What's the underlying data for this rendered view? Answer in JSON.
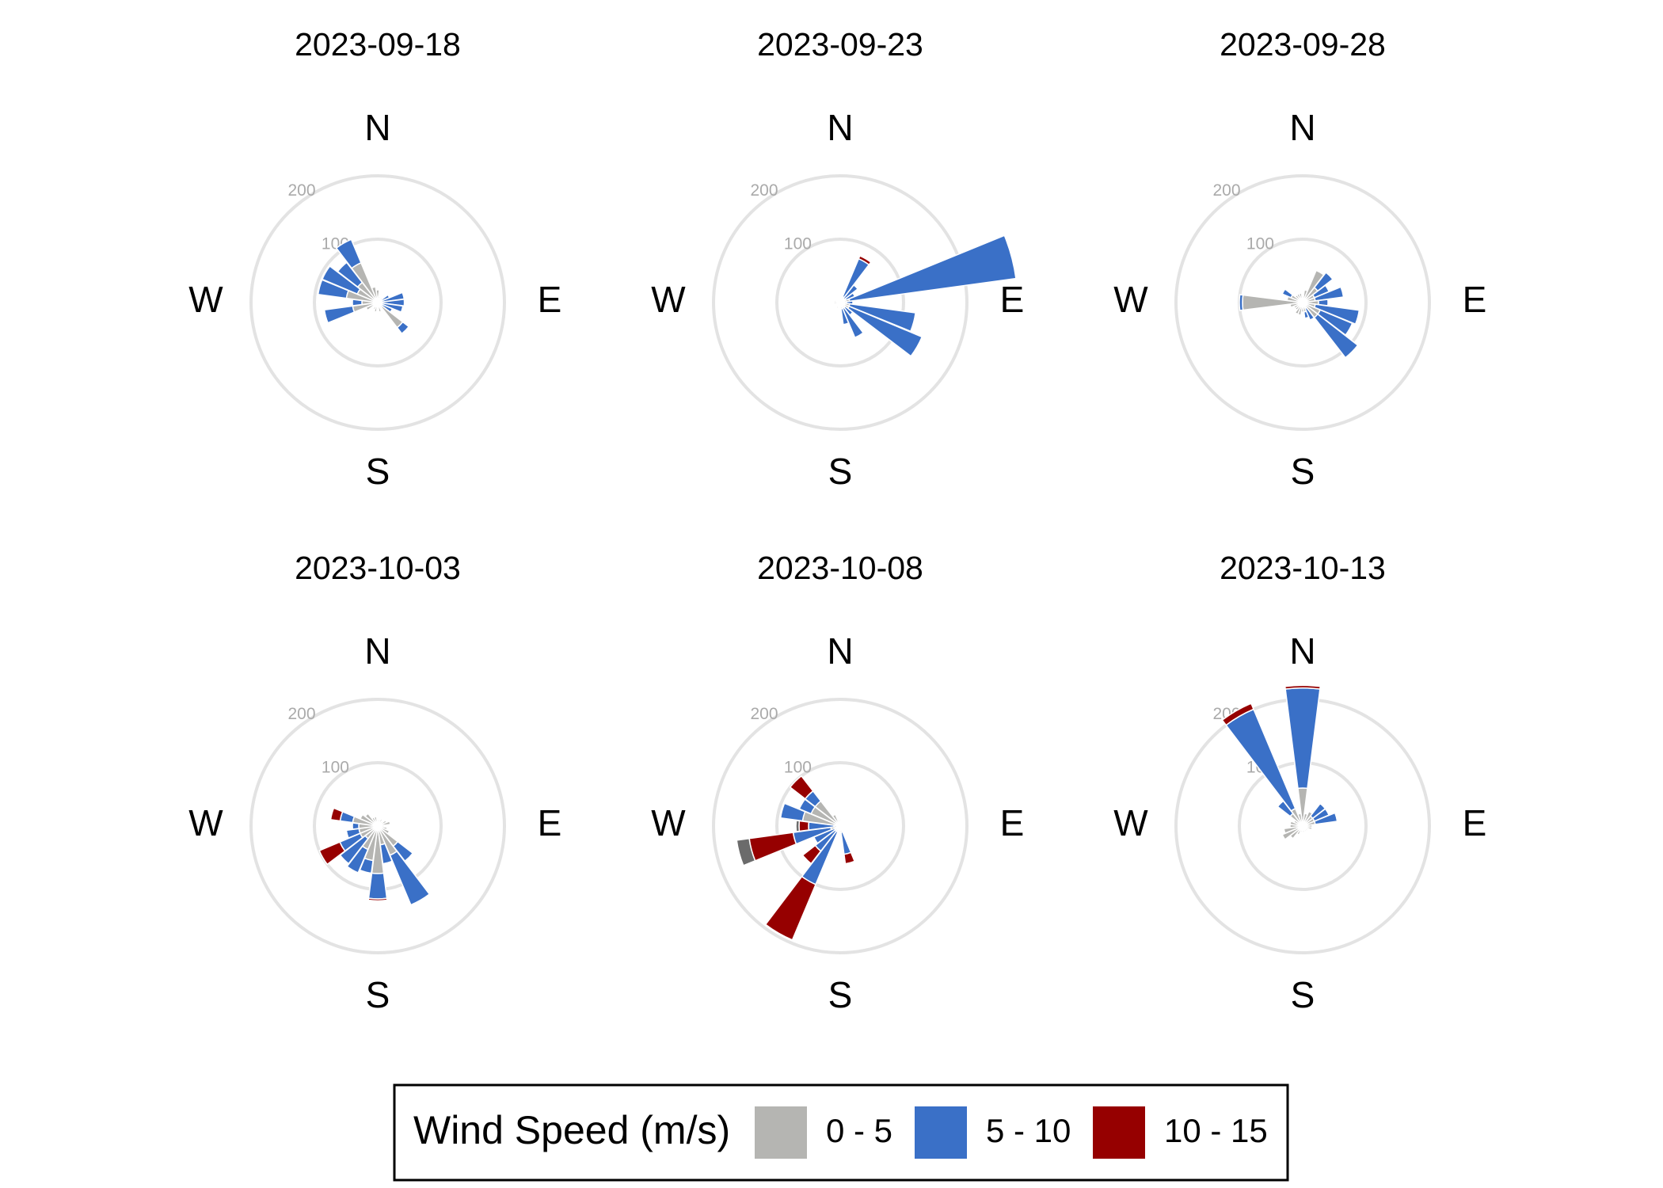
{
  "chart_data": {
    "type": "wind-rose",
    "facets": [
      "2023-09-18",
      "2023-09-23",
      "2023-09-28",
      "2023-10-03",
      "2023-10-08",
      "2023-10-13"
    ],
    "ring_labels": [
      "100",
      "200"
    ],
    "ring_values": [
      100,
      200
    ],
    "radius_max": 200,
    "compass_labels": {
      "N": "N",
      "E": "E",
      "S": "S",
      "W": "W"
    },
    "legend": {
      "title": "Wind Speed (m/s)",
      "bins": [
        {
          "label": "0 - 5",
          "color": "#b5b5b2"
        },
        {
          "label": "5 - 10",
          "color": "#3a70c7"
        },
        {
          "label": "10 - 15",
          "color": "#960000"
        }
      ]
    },
    "colors": {
      "dark_gray": "#6b6b6b",
      "ring": "#e3e3e3"
    },
    "panels": [
      {
        "date": "2023-09-18",
        "sectors": [
          {
            "dir": 0,
            "cum": [
              20
            ]
          },
          {
            "dir": 15,
            "cum": [
              10
            ]
          },
          {
            "dir": 30,
            "cum": [
              8
            ]
          },
          {
            "dir": 45,
            "cum": [
              10
            ]
          },
          {
            "dir": 60,
            "cum": [
              5,
              20
            ]
          },
          {
            "dir": 75,
            "cum": [
              5,
              42
            ]
          },
          {
            "dir": 90,
            "cum": [
              5,
              42
            ]
          },
          {
            "dir": 105,
            "cum": [
              5,
              40
            ]
          },
          {
            "dir": 120,
            "cum": [
              5,
              25
            ]
          },
          {
            "dir": 135,
            "cum": [
              50,
              62
            ]
          },
          {
            "dir": 150,
            "cum": [
              10
            ]
          },
          {
            "dir": 165,
            "cum": [
              15
            ]
          },
          {
            "dir": 180,
            "cum": [
              8
            ]
          },
          {
            "dir": 195,
            "cum": [
              15
            ]
          },
          {
            "dir": 210,
            "cum": [
              12
            ]
          },
          {
            "dir": 225,
            "cum": [
              8
            ]
          },
          {
            "dir": 240,
            "cum": [
              20
            ]
          },
          {
            "dir": 255,
            "cum": [
              40,
              85
            ]
          },
          {
            "dir": 270,
            "cum": [
              25,
              40
            ]
          },
          {
            "dir": 285,
            "cum": [
              50,
              95
            ]
          },
          {
            "dir": 300,
            "cum": [
              35,
              95
            ]
          },
          {
            "dir": 315,
            "cum": [
              40,
              80
            ]
          },
          {
            "dir": 330,
            "cum": [
              68,
              108
            ]
          },
          {
            "dir": 345,
            "cum": [
              25
            ]
          }
        ]
      },
      {
        "date": "2023-09-23",
        "sectors": [
          {
            "dir": 0,
            "cum": [
              5
            ]
          },
          {
            "dir": 15,
            "cum": [
              5
            ]
          },
          {
            "dir": 30,
            "cum": [
              10,
              75,
              80
            ]
          },
          {
            "dir": 45,
            "cum": [
              8,
              35
            ]
          },
          {
            "dir": 60,
            "cum": [
              10,
              25
            ]
          },
          {
            "dir": 75,
            "cum": [
              15,
              280
            ]
          },
          {
            "dir": 90,
            "cum": [
              10,
              20
            ]
          },
          {
            "dir": 105,
            "cum": [
              15,
              120
            ]
          },
          {
            "dir": 120,
            "cum": [
              15,
              140
            ]
          },
          {
            "dir": 135,
            "cum": [
              10,
              25
            ]
          },
          {
            "dir": 150,
            "cum": [
              10,
              60
            ]
          },
          {
            "dir": 165,
            "cum": [
              10,
              35
            ]
          },
          {
            "dir": 180,
            "cum": [
              8
            ]
          },
          {
            "dir": 195,
            "cum": [
              8
            ]
          },
          {
            "dir": 210,
            "cum": [
              10
            ]
          },
          {
            "dir": 225,
            "cum": [
              5
            ]
          },
          {
            "dir": 240,
            "cum": [
              8
            ]
          },
          {
            "dir": 255,
            "cum": [
              8
            ]
          },
          {
            "dir": 270,
            "cum": [
              10
            ]
          },
          {
            "dir": 285,
            "cum": [
              10
            ]
          },
          {
            "dir": 300,
            "cum": [
              5
            ]
          },
          {
            "dir": 315,
            "cum": [
              5
            ]
          },
          {
            "dir": 330,
            "cum": [
              5
            ]
          },
          {
            "dir": 345,
            "cum": [
              5
            ]
          }
        ]
      },
      {
        "date": "2023-09-28",
        "sectors": [
          {
            "dir": 0,
            "cum": [
              10
            ]
          },
          {
            "dir": 15,
            "cum": [
              20
            ]
          },
          {
            "dir": 30,
            "cum": [
              55
            ]
          },
          {
            "dir": 45,
            "cum": [
              30,
              60
            ]
          },
          {
            "dir": 60,
            "cum": [
              20,
              45
            ]
          },
          {
            "dir": 75,
            "cum": [
              20,
              65
            ]
          },
          {
            "dir": 90,
            "cum": [
              25,
              40
            ]
          },
          {
            "dir": 105,
            "cum": [
              20,
              90
            ]
          },
          {
            "dir": 120,
            "cum": [
              30,
              85
            ]
          },
          {
            "dir": 135,
            "cum": [
              30,
              110
            ]
          },
          {
            "dir": 150,
            "cum": [
              10,
              30
            ]
          },
          {
            "dir": 165,
            "cum": [
              15,
              25
            ]
          },
          {
            "dir": 180,
            "cum": [
              15
            ]
          },
          {
            "dir": 195,
            "cum": [
              20
            ]
          },
          {
            "dir": 210,
            "cum": [
              20
            ]
          },
          {
            "dir": 225,
            "cum": [
              15
            ]
          },
          {
            "dir": 240,
            "cum": [
              15
            ]
          },
          {
            "dir": 255,
            "cum": [
              20
            ]
          },
          {
            "dir": 270,
            "cum": [
              95,
              100
            ]
          },
          {
            "dir": 285,
            "cum": [
              25
            ]
          },
          {
            "dir": 300,
            "cum": [
              20,
              35
            ]
          },
          {
            "dir": 315,
            "cum": [
              15
            ]
          },
          {
            "dir": 330,
            "cum": [
              15
            ]
          },
          {
            "dir": 345,
            "cum": [
              15
            ]
          }
        ]
      },
      {
        "date": "2023-10-03",
        "sectors": [
          {
            "dir": 0,
            "cum": [
              10
            ]
          },
          {
            "dir": 15,
            "cum": [
              10
            ]
          },
          {
            "dir": 30,
            "cum": [
              12
            ]
          },
          {
            "dir": 45,
            "cum": [
              10
            ]
          },
          {
            "dir": 60,
            "cum": [
              15
            ]
          },
          {
            "dir": 75,
            "cum": [
              20
            ]
          },
          {
            "dir": 90,
            "cum": [
              10
            ]
          },
          {
            "dir": 105,
            "cum": [
              15
            ]
          },
          {
            "dir": 120,
            "cum": [
              20
            ]
          },
          {
            "dir": 135,
            "cum": [
              40,
              70
            ]
          },
          {
            "dir": 150,
            "cum": [
              50,
              135
            ]
          },
          {
            "dir": 165,
            "cum": [
              30,
              60
            ]
          },
          {
            "dir": 180,
            "cum": [
              75,
              115,
              118
            ]
          },
          {
            "dir": 195,
            "cum": [
              55,
              75
            ]
          },
          {
            "dir": 210,
            "cum": [
              40,
              80
            ]
          },
          {
            "dir": 225,
            "cum": [
              25,
              75
            ]
          },
          {
            "dir": 240,
            "cum": [
              30,
              65,
              100
            ]
          },
          {
            "dir": 255,
            "cum": [
              30,
              50
            ]
          },
          {
            "dir": 270,
            "cum": [
              30,
              40
            ]
          },
          {
            "dir": 285,
            "cum": [
              40,
              60,
              75
            ]
          },
          {
            "dir": 300,
            "cum": [
              30
            ]
          },
          {
            "dir": 315,
            "cum": [
              25
            ]
          },
          {
            "dir": 330,
            "cum": [
              15
            ]
          },
          {
            "dir": 345,
            "cum": [
              15
            ]
          }
        ]
      },
      {
        "date": "2023-10-08",
        "sectors": [
          {
            "dir": 0,
            "cum": [
              10
            ]
          },
          {
            "dir": 15,
            "cum": [
              8
            ]
          },
          {
            "dir": 30,
            "cum": [
              8
            ]
          },
          {
            "dir": 45,
            "cum": [
              5
            ]
          },
          {
            "dir": 60,
            "cum": [
              5
            ]
          },
          {
            "dir": 75,
            "cum": [
              5
            ]
          },
          {
            "dir": 90,
            "cum": [
              5
            ]
          },
          {
            "dir": 105,
            "cum": [
              5
            ]
          },
          {
            "dir": 120,
            "cum": [
              5
            ]
          },
          {
            "dir": 135,
            "cum": [
              5
            ]
          },
          {
            "dir": 150,
            "cum": [
              5
            ]
          },
          {
            "dir": 165,
            "cum": [
              10,
              45,
              60
            ]
          },
          {
            "dir": 180,
            "cum": [
              10
            ]
          },
          {
            "dir": 195,
            "cum": [
              5
            ]
          },
          {
            "dir": 210,
            "cum": [
              10,
              100,
              195
            ]
          },
          {
            "dir": 225,
            "cum": [
              10,
              50,
              75
            ]
          },
          {
            "dir": 240,
            "cum": [
              10,
              45
            ]
          },
          {
            "dir": 255,
            "cum": [
              15,
              75,
              145,
              165
            ]
          },
          {
            "dir": 270,
            "cum": [
              10,
              50,
              65,
              70
            ]
          },
          {
            "dir": 285,
            "cum": [
              60,
              95
            ]
          },
          {
            "dir": 300,
            "cum": [
              50,
              70
            ]
          },
          {
            "dir": 315,
            "cum": [
              50,
              70,
              100
            ]
          },
          {
            "dir": 330,
            "cum": [
              20
            ]
          },
          {
            "dir": 345,
            "cum": [
              10
            ]
          }
        ]
      },
      {
        "date": "2023-10-13",
        "sectors": [
          {
            "dir": 0,
            "cum": [
              60,
              218,
              222
            ]
          },
          {
            "dir": 15,
            "cum": [
              20
            ]
          },
          {
            "dir": 30,
            "cum": [
              25
            ]
          },
          {
            "dir": 45,
            "cum": [
              20,
              45
            ]
          },
          {
            "dir": 60,
            "cum": [
              20,
              45
            ]
          },
          {
            "dir": 75,
            "cum": [
              20,
              55
            ]
          },
          {
            "dir": 90,
            "cum": [
              15
            ]
          },
          {
            "dir": 105,
            "cum": [
              15
            ]
          },
          {
            "dir": 120,
            "cum": [
              10
            ]
          },
          {
            "dir": 135,
            "cum": [
              10
            ]
          },
          {
            "dir": 150,
            "cum": [
              10
            ]
          },
          {
            "dir": 165,
            "cum": [
              10
            ]
          },
          {
            "dir": 180,
            "cum": [
              10
            ]
          },
          {
            "dir": 195,
            "cum": [
              10
            ]
          },
          {
            "dir": 210,
            "cum": [
              15
            ]
          },
          {
            "dir": 225,
            "cum": [
              25
            ]
          },
          {
            "dir": 240,
            "cum": [
              35
            ]
          },
          {
            "dir": 255,
            "cum": [
              30
            ]
          },
          {
            "dir": 270,
            "cum": [
              20
            ]
          },
          {
            "dir": 285,
            "cum": [
              20
            ]
          },
          {
            "dir": 300,
            "cum": [
              15
            ]
          },
          {
            "dir": 315,
            "cum": [
              25,
              50
            ]
          },
          {
            "dir": 330,
            "cum": [
              30,
              200,
              210
            ]
          },
          {
            "dir": 345,
            "cum": [
              20
            ]
          }
        ]
      }
    ]
  }
}
